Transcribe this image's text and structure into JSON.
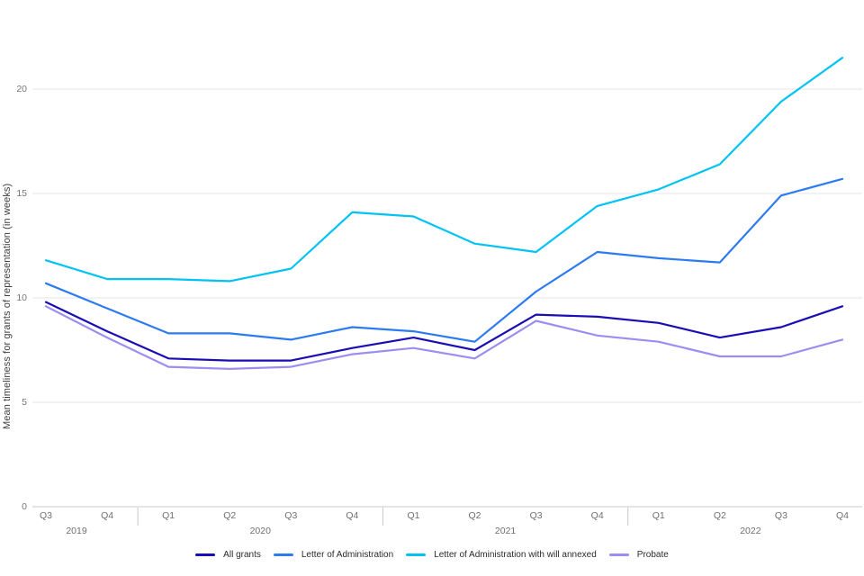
{
  "chart_data": {
    "type": "line",
    "title": "",
    "xlabel": "",
    "ylabel": "Mean timeliness for grants of representation (in weeks)",
    "ylim": [
      0,
      22.5
    ],
    "yticks": [
      0,
      5,
      10,
      15,
      20
    ],
    "grid": true,
    "legend_position": "bottom",
    "x_groups": [
      {
        "year": "2019",
        "quarters": [
          "Q3",
          "Q4"
        ]
      },
      {
        "year": "2020",
        "quarters": [
          "Q1",
          "Q2",
          "Q3",
          "Q4"
        ]
      },
      {
        "year": "2021",
        "quarters": [
          "Q1",
          "Q2",
          "Q3",
          "Q4"
        ]
      },
      {
        "year": "2022",
        "quarters": [
          "Q1",
          "Q2",
          "Q3",
          "Q4"
        ]
      }
    ],
    "categories": [
      "Q3 2019",
      "Q4 2019",
      "Q1 2020",
      "Q2 2020",
      "Q3 2020",
      "Q4 2020",
      "Q1 2021",
      "Q2 2021",
      "Q3 2021",
      "Q4 2021",
      "Q1 2022",
      "Q2 2022",
      "Q3 2022",
      "Q4 2022"
    ],
    "series": [
      {
        "name": "All grants",
        "color": "#1a0db5",
        "values": [
          9.8,
          8.4,
          7.1,
          7.0,
          7.0,
          7.6,
          8.1,
          7.5,
          9.2,
          9.1,
          8.8,
          8.1,
          8.6,
          9.6
        ]
      },
      {
        "name": "Letter of Administration",
        "color": "#2d7bf0",
        "values": [
          10.7,
          9.5,
          8.3,
          8.3,
          8.0,
          8.6,
          8.4,
          7.9,
          10.3,
          12.2,
          11.9,
          11.7,
          14.9,
          15.7
        ]
      },
      {
        "name": "Letter of Administration with will annexed",
        "color": "#00c3f4",
        "values": [
          11.8,
          10.9,
          10.9,
          10.8,
          11.4,
          14.1,
          13.9,
          12.6,
          12.2,
          14.4,
          15.2,
          16.4,
          19.4,
          21.5
        ]
      },
      {
        "name": "Probate",
        "color": "#9c8ef0",
        "values": [
          9.6,
          8.1,
          6.7,
          6.6,
          6.7,
          7.3,
          7.6,
          7.1,
          8.9,
          8.2,
          7.9,
          7.2,
          7.2,
          8.0
        ]
      }
    ],
    "colors": {
      "gridline": "#e4e4e4",
      "baseline": "#c8c8c8",
      "separator": "#c8c8c8"
    }
  }
}
